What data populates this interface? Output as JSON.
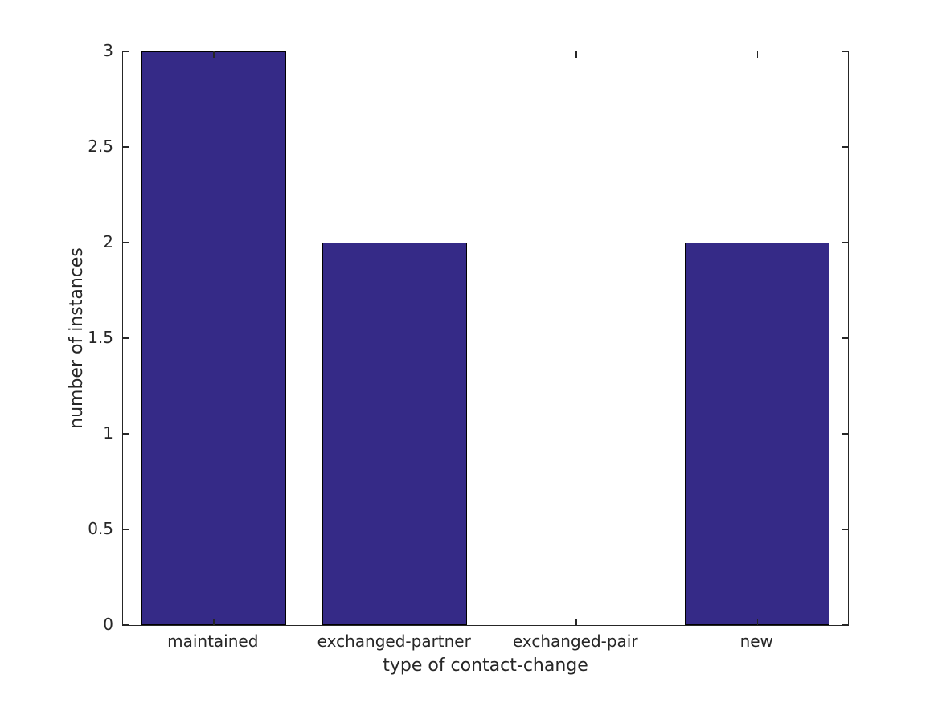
{
  "chart_data": {
    "type": "bar",
    "title": "",
    "categories": [
      "maintained",
      "exchanged-partner",
      "exchanged-pair",
      "new"
    ],
    "values": [
      3,
      2,
      0,
      2
    ],
    "xlabel": "type of contact-change",
    "ylabel": "number of instances",
    "ylim": [
      0,
      3
    ],
    "yticks": [
      0,
      0.5,
      1,
      1.5,
      2,
      2.5,
      3
    ],
    "ytick_labels": [
      "0",
      "0.5",
      "1",
      "1.5",
      "2",
      "2.5",
      "3"
    ],
    "grid": false,
    "legend": null,
    "colors": {
      "bar_fill": "#352a87",
      "bar_edge": "#000000",
      "axis": "#262626",
      "text": "#262626",
      "background": "#ffffff"
    }
  }
}
